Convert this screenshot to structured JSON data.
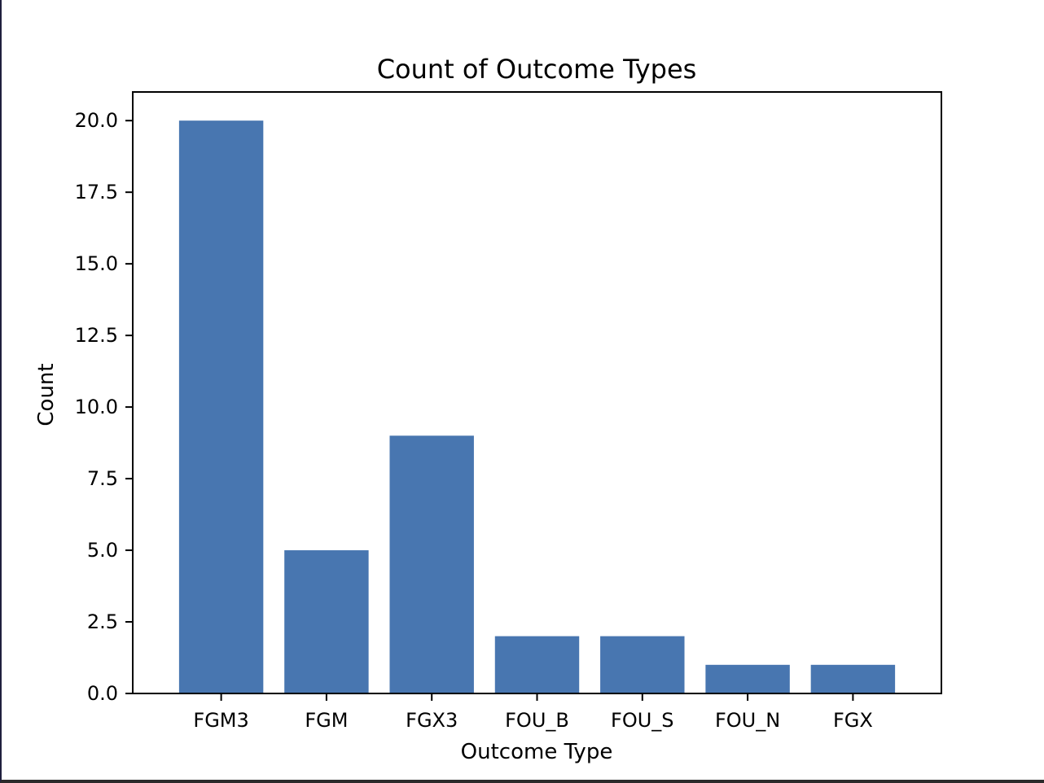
{
  "chart_data": {
    "type": "bar",
    "title": "Count of Outcome Types",
    "xlabel": "Outcome Type",
    "ylabel": "Count",
    "categories": [
      "FGM3",
      "FGM",
      "FGX3",
      "FOU_B",
      "FOU_S",
      "FOU_N",
      "FGX"
    ],
    "values": [
      20,
      5,
      9,
      2,
      2,
      1,
      1
    ],
    "ylim": [
      0,
      21
    ],
    "yticks": [
      0,
      2.5,
      5,
      7.5,
      10,
      12.5,
      15,
      17.5,
      20
    ],
    "ytick_labels": [
      "0.0",
      "2.5",
      "5.0",
      "7.5",
      "10.0",
      "12.5",
      "15.0",
      "17.5",
      "20.0"
    ],
    "grid": false,
    "bar_color": "#4876b0"
  }
}
